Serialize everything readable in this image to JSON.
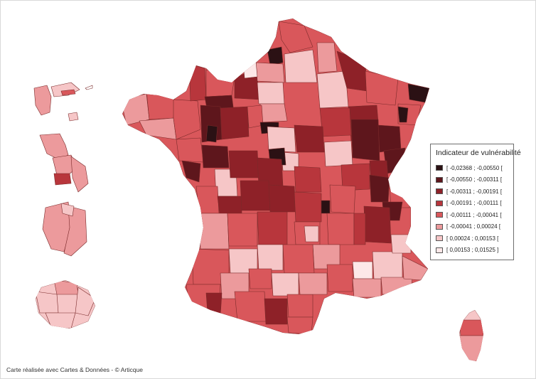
{
  "legend": {
    "title": "Indicateur de vulnérabilité",
    "classes": [
      {
        "label": "[ -0,02368 ; -0,00550 [",
        "color": "#2b1114"
      },
      {
        "label": "[ -0,00550 ; -0,00311 [",
        "color": "#5e161c"
      },
      {
        "label": "[ -0,00311 ; -0,00191 [",
        "color": "#8e2128"
      },
      {
        "label": "[ -0,00191 ; -0,00111 [",
        "color": "#b8363c"
      },
      {
        "label": "[ -0,00111 ; -0,00041 [",
        "color": "#d9575b"
      },
      {
        "label": "[ -0,00041 ; 0,00024 [",
        "color": "#ec9a9c"
      },
      {
        "label": "[ 0,00024 ; 0,00153 [",
        "color": "#f6c6c7"
      },
      {
        "label": "[ 0,00153 ; 0,01525 ]",
        "color": "#fde8e8"
      }
    ]
  },
  "credit": "Carte réalisée avec Cartes & Données - © Articque",
  "map": {
    "regions": [
      "metropolitan-france",
      "guadeloupe",
      "martinique",
      "guyane",
      "la-reunion",
      "corse"
    ]
  }
}
